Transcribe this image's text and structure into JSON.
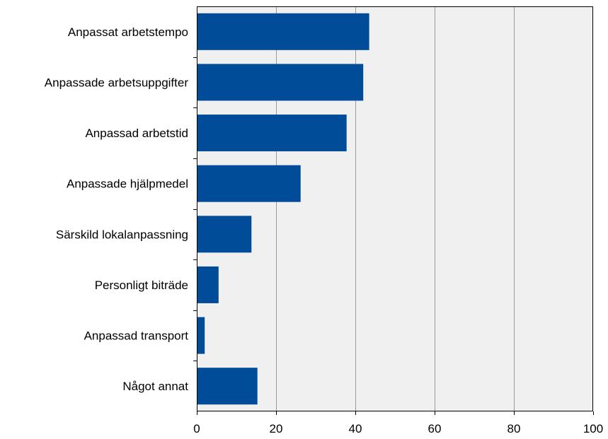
{
  "chart_data": {
    "type": "bar",
    "orientation": "horizontal",
    "title": "",
    "xlabel": "",
    "ylabel": "",
    "categories": [
      "Anpassat arbetstempo",
      "Anpassade arbetsuppgifter",
      "Anpassad arbetstid",
      "Anpassade hjälpmedel",
      "Särskild lokalanpassning",
      "Personligt biträde",
      "Anpassad transport",
      "Något annat"
    ],
    "values": [
      43.5,
      42,
      37.8,
      26.2,
      13.8,
      5.5,
      2,
      15.3
    ],
    "xlim": [
      0,
      100
    ],
    "xticks": [
      0,
      20,
      40,
      60,
      80,
      100
    ],
    "xtick_labels": [
      "0",
      "20",
      "40",
      "60",
      "80",
      "100"
    ],
    "grid": "vertical",
    "colors": {
      "bar": "#004c99",
      "plot_background": "#f0f0f0",
      "gridline": "#9a9a9a",
      "axis": "#000000"
    }
  }
}
